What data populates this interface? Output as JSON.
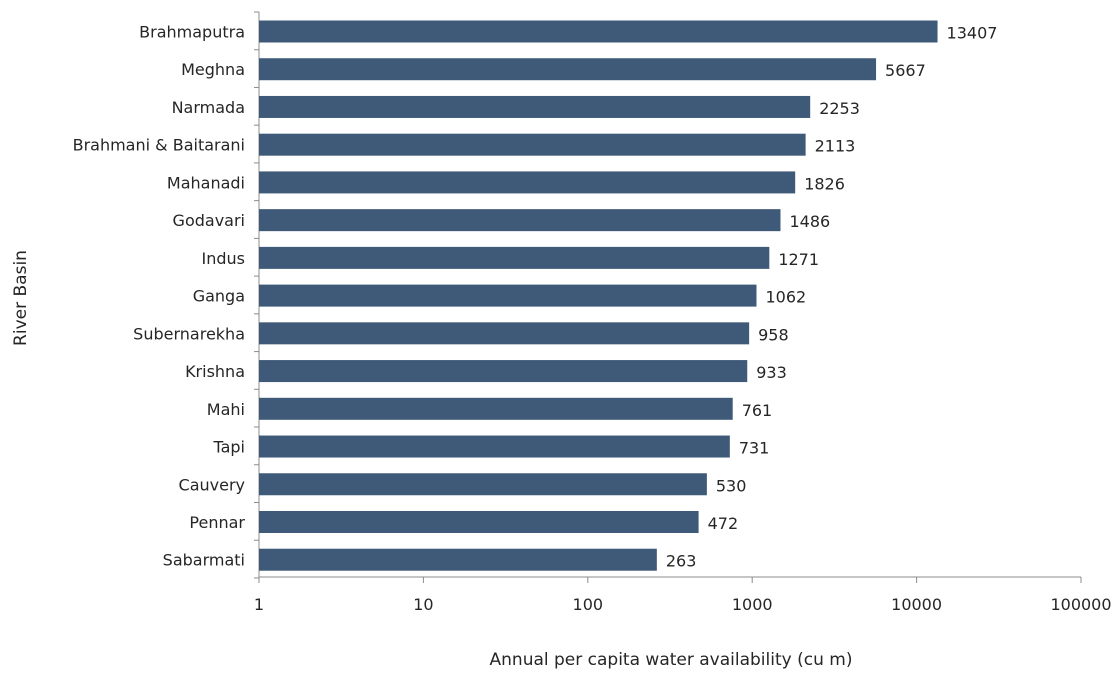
{
  "chart_data": {
    "type": "bar",
    "orientation": "horizontal",
    "categories": [
      "Brahmaputra",
      "Meghna",
      "Narmada",
      "Brahmani & Baitarani",
      "Mahanadi",
      "Godavari",
      "Indus",
      "Ganga",
      "Subernarekha",
      "Krishna",
      "Mahi",
      "Tapi",
      "Cauvery",
      "Pennar",
      "Sabarmati"
    ],
    "values": [
      13407,
      5667,
      2253,
      2113,
      1826,
      1486,
      1271,
      1062,
      958,
      933,
      761,
      731,
      530,
      472,
      263
    ],
    "data_labels": [
      "13407",
      "5667",
      "2253",
      "2113",
      "1826",
      "1486",
      "1271",
      "1062",
      "958",
      "933",
      "761",
      "731",
      "530",
      "472",
      "263"
    ],
    "xlabel": "Annual per capita water availability (cu m)",
    "ylabel": "River Basin",
    "x_scale": "log",
    "xlim": [
      1,
      100000
    ],
    "x_ticks": [
      "1",
      "10",
      "100",
      "1000",
      "10000",
      "100000"
    ],
    "grid": false,
    "legend": "none",
    "bar_color": "#3e5a78"
  }
}
